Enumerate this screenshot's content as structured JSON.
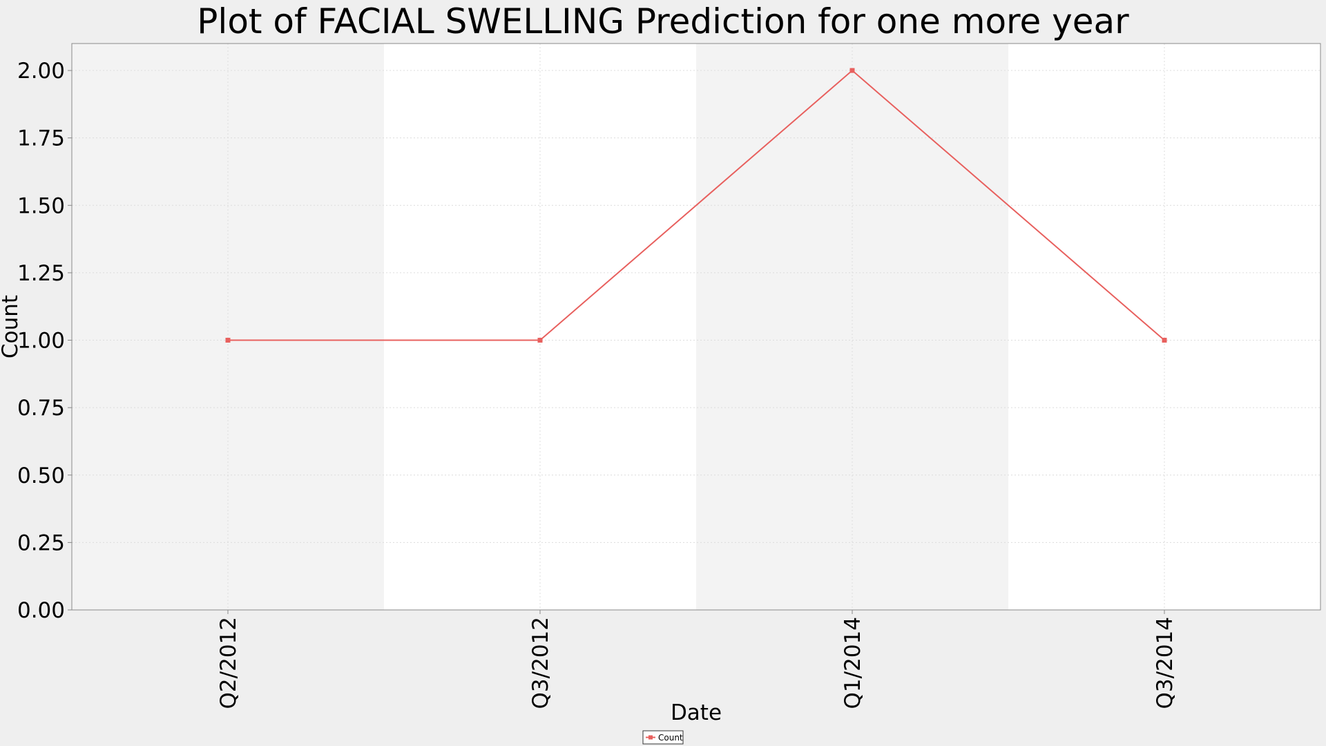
{
  "chart_data": {
    "type": "line",
    "title": "Plot of FACIAL SWELLING Prediction for one more year",
    "xlabel": "Date",
    "ylabel": "Count",
    "categories": [
      "Q2/2012",
      "Q3/2012",
      "Q1/2014",
      "Q3/2014"
    ],
    "series": [
      {
        "name": "Count",
        "values": [
          1,
          1,
          2,
          1
        ],
        "color": "#e8605e"
      }
    ],
    "ylim": [
      0,
      2.1
    ],
    "yticks": [
      "0.00",
      "0.25",
      "0.50",
      "0.75",
      "1.00",
      "1.25",
      "1.50",
      "1.75",
      "2.00"
    ],
    "grid": true,
    "legend_position": "bottom-center",
    "alternating_bands": true,
    "colors": {
      "page_background": "#efefef",
      "band_shaded": "#f3f3f3",
      "band_plain": "#ffffff",
      "gridline": "#dcdcdc",
      "axis": "#888888"
    }
  }
}
